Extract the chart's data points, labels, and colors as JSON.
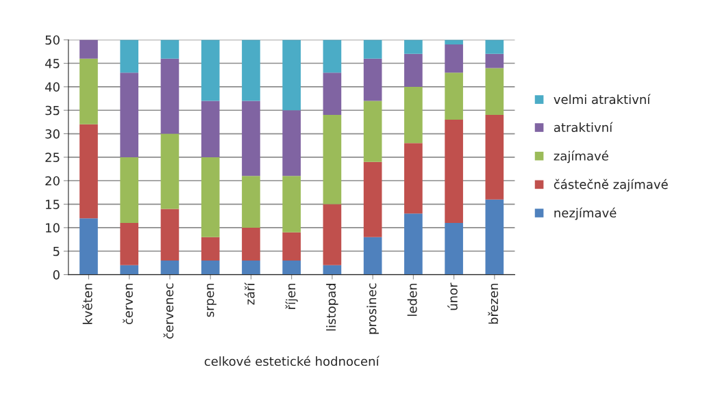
{
  "chart_data": {
    "type": "bar",
    "stacked": true,
    "xlabel": "celkové estetické hodnocení",
    "categories": [
      "květen",
      "červen",
      "červenec",
      "srpen",
      "září",
      "říjen",
      "listopad",
      "prosinec",
      "leden",
      "únor",
      "březen"
    ],
    "series": [
      {
        "name": "nezjímavé",
        "color": "#4f81bd",
        "values": [
          12,
          2,
          3,
          3,
          3,
          3,
          2,
          8,
          13,
          11,
          16
        ]
      },
      {
        "name": "částečně zajímavé",
        "color": "#c0504d",
        "values": [
          20,
          9,
          11,
          5,
          7,
          6,
          13,
          16,
          15,
          22,
          18
        ]
      },
      {
        "name": "zajímavé",
        "color": "#9bbb59",
        "values": [
          14,
          14,
          16,
          17,
          11,
          12,
          19,
          13,
          12,
          10,
          10
        ]
      },
      {
        "name": "atraktivní",
        "color": "#8064a2",
        "values": [
          4,
          18,
          16,
          12,
          16,
          14,
          9,
          9,
          7,
          6,
          3
        ]
      },
      {
        "name": "velmi atraktivní",
        "color": "#4bacc6",
        "values": [
          0,
          7,
          4,
          13,
          13,
          15,
          7,
          4,
          3,
          1,
          3
        ]
      }
    ],
    "ylim": [
      0,
      50
    ],
    "yticks": [
      0,
      5,
      10,
      15,
      20,
      25,
      30,
      35,
      40,
      45,
      50
    ],
    "grid": "y",
    "legend": "right"
  }
}
